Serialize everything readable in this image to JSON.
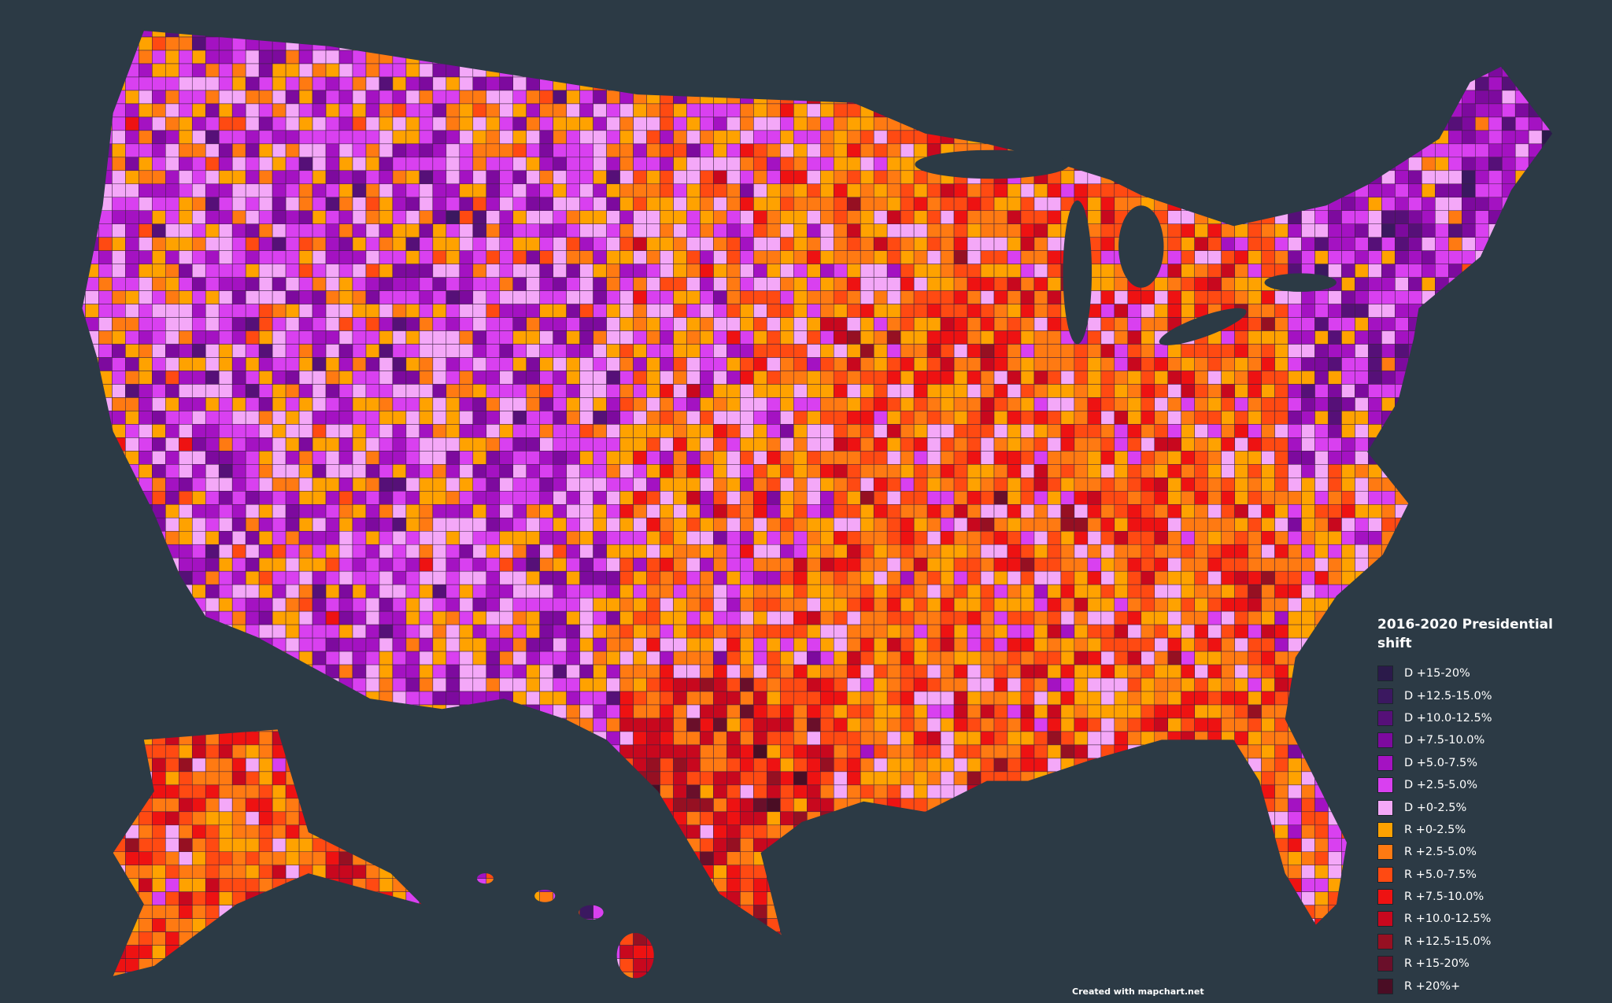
{
  "legend": {
    "title": "2016-2020 Presidential shift",
    "items": [
      {
        "label": "D +15-20%",
        "color": "#2b1a4a"
      },
      {
        "label": "D +12.5-15.0%",
        "color": "#3b1860"
      },
      {
        "label": "D +10.0-12.5%",
        "color": "#561078"
      },
      {
        "label": "D +7.5-10.0%",
        "color": "#7d0a9e"
      },
      {
        "label": "D +5.0-7.5%",
        "color": "#a412c2"
      },
      {
        "label": "D +2.5-5.0%",
        "color": "#d940f0"
      },
      {
        "label": "D +0-2.5%",
        "color": "#f4a8f8"
      },
      {
        "label": "R +0-2.5%",
        "color": "#ffa200"
      },
      {
        "label": "R +2.5-5.0%",
        "color": "#ff7a12"
      },
      {
        "label": "R +5.0-7.5%",
        "color": "#ff4a12"
      },
      {
        "label": "R +7.5-10.0%",
        "color": "#ee1212"
      },
      {
        "label": "R +10.0-12.5%",
        "color": "#c8081e"
      },
      {
        "label": "R +12.5-15.0%",
        "color": "#961022"
      },
      {
        "label": "R +15-20%",
        "color": "#6a0f2a"
      },
      {
        "label": "R +20%+",
        "color": "#4a0d24"
      }
    ]
  },
  "credit": "Created with mapchart.net"
}
